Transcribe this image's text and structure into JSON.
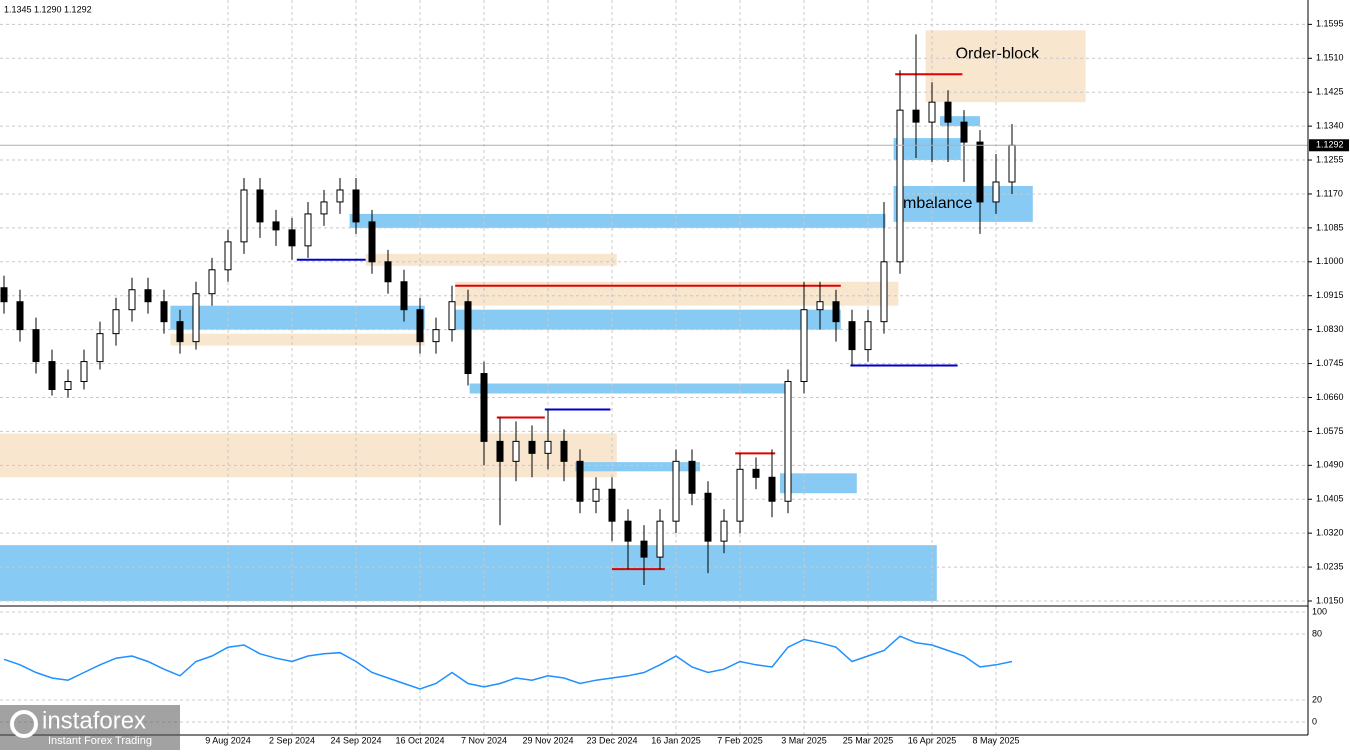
{
  "chart_data": {
    "type": "candlestick",
    "header": "1.1345 1.1290 1.1292",
    "categories": [
      null,
      null,
      null,
      null,
      null,
      null,
      null,
      null,
      null,
      null,
      null,
      null,
      null,
      null,
      "9 Aug 2024",
      null,
      null,
      null,
      "2 Sep 2024",
      null,
      null,
      null,
      "24 Sep 2024",
      null,
      null,
      null,
      "16 Oct 2024",
      null,
      null,
      null,
      "7 Nov 2024",
      null,
      null,
      null,
      "29 Nov 2024",
      null,
      null,
      null,
      "23 Dec 2024",
      null,
      null,
      null,
      "16 Jan 2025",
      null,
      null,
      null,
      "7 Feb 2025",
      null,
      null,
      null,
      "3 Mar 2025",
      null,
      null,
      null,
      "25 Mar 2025",
      null,
      null,
      null,
      "16 Apr 2025",
      null,
      null,
      null,
      "8 May 2025",
      null
    ],
    "open": [
      1.0935,
      1.09,
      1.083,
      1.075,
      1.068,
      1.07,
      1.075,
      1.082,
      1.088,
      1.093,
      1.09,
      1.085,
      1.08,
      1.092,
      1.098,
      1.105,
      1.118,
      1.11,
      1.108,
      1.104,
      1.112,
      1.115,
      1.118,
      1.11,
      1.1,
      1.095,
      1.088,
      1.08,
      1.083,
      1.09,
      1.072,
      1.055,
      1.05,
      1.055,
      1.052,
      1.055,
      1.05,
      1.04,
      1.043,
      1.035,
      1.03,
      1.026,
      1.035,
      1.05,
      1.042,
      1.03,
      1.035,
      1.048,
      1.046,
      1.04,
      1.07,
      1.088,
      1.09,
      1.085,
      1.078,
      1.085,
      1.1,
      1.138,
      1.135,
      1.14,
      1.135,
      1.13,
      1.115,
      1.12
    ],
    "high": [
      1.0965,
      1.093,
      1.086,
      1.078,
      1.073,
      1.078,
      1.085,
      1.091,
      1.096,
      1.096,
      1.093,
      1.088,
      1.095,
      1.101,
      1.108,
      1.121,
      1.121,
      1.113,
      1.111,
      1.115,
      1.118,
      1.121,
      1.121,
      1.113,
      1.103,
      1.098,
      1.091,
      1.086,
      1.094,
      1.093,
      1.075,
      1.061,
      1.06,
      1.059,
      1.063,
      1.058,
      1.053,
      1.046,
      1.046,
      1.038,
      1.034,
      1.038,
      1.053,
      1.053,
      1.045,
      1.038,
      1.052,
      1.051,
      1.053,
      1.073,
      1.095,
      1.095,
      1.093,
      1.088,
      1.088,
      1.115,
      1.148,
      1.157,
      1.145,
      1.143,
      1.138,
      1.133,
      1.127,
      1.1345
    ],
    "low": [
      1.087,
      1.08,
      1.072,
      1.0665,
      1.066,
      1.068,
      1.073,
      1.079,
      1.085,
      1.087,
      1.082,
      1.077,
      1.078,
      1.089,
      1.095,
      1.102,
      1.106,
      1.104,
      1.1005,
      1.101,
      1.109,
      1.112,
      1.107,
      1.097,
      1.092,
      1.085,
      1.077,
      1.077,
      1.08,
      1.069,
      1.049,
      1.034,
      1.045,
      1.046,
      1.048,
      1.045,
      1.037,
      1.037,
      1.03,
      1.023,
      1.019,
      1.023,
      1.032,
      1.039,
      1.022,
      1.027,
      1.032,
      1.043,
      1.036,
      1.037,
      1.067,
      1.083,
      1.08,
      1.074,
      1.075,
      1.082,
      1.097,
      1.126,
      1.125,
      1.125,
      1.12,
      1.107,
      1.112,
      1.117
    ],
    "close": [
      1.09,
      1.083,
      1.075,
      1.068,
      1.07,
      1.075,
      1.082,
      1.088,
      1.093,
      1.09,
      1.085,
      1.08,
      1.092,
      1.098,
      1.105,
      1.118,
      1.11,
      1.108,
      1.104,
      1.112,
      1.115,
      1.118,
      1.11,
      1.1,
      1.095,
      1.088,
      1.08,
      1.083,
      1.09,
      1.072,
      1.055,
      1.05,
      1.055,
      1.052,
      1.055,
      1.05,
      1.04,
      1.043,
      1.035,
      1.03,
      1.026,
      1.035,
      1.05,
      1.042,
      1.03,
      1.035,
      1.048,
      1.046,
      1.04,
      1.07,
      1.088,
      1.09,
      1.085,
      1.078,
      1.085,
      1.1,
      1.138,
      1.135,
      1.14,
      1.135,
      1.13,
      1.115,
      1.12,
      1.1292
    ],
    "last_price": 1.1292,
    "ylim": [
      1.014,
      1.1636
    ],
    "yticks": [
      {
        "value": 1.015,
        "label": "1.0150"
      },
      {
        "value": 1.0235,
        "label": "1.0235"
      },
      {
        "value": 1.032,
        "label": "1.0320"
      },
      {
        "value": 1.0405,
        "label": "1.0405"
      },
      {
        "value": 1.049,
        "label": "1.0490"
      },
      {
        "value": 1.0575,
        "label": "1.0575"
      },
      {
        "value": 1.066,
        "label": "1.0660"
      },
      {
        "value": 1.0745,
        "label": "1.0745"
      },
      {
        "value": 1.083,
        "label": "1.0830"
      },
      {
        "value": 1.0915,
        "label": "1.0915"
      },
      {
        "value": 1.1,
        "label": "1.1000"
      },
      {
        "value": 1.1085,
        "label": "1.1085"
      },
      {
        "value": 1.117,
        "label": "1.1170"
      },
      {
        "value": 1.1255,
        "label": "1.1255"
      },
      {
        "value": 1.134,
        "label": "1.1340"
      },
      {
        "value": 1.1425,
        "label": "1.1425"
      },
      {
        "value": 1.151,
        "label": "1.1510"
      },
      {
        "value": 1.1595,
        "label": "1.1595"
      }
    ],
    "grid": true,
    "zones": [
      {
        "from": -0.5,
        "to": 58.3,
        "low": 1.015,
        "high": 1.029,
        "color": "#87cbf5"
      },
      {
        "from": -0.5,
        "to": 38.3,
        "low": 1.046,
        "high": 1.057,
        "color": "#f8e6cf"
      },
      {
        "from": 48.5,
        "to": 53.3,
        "low": 1.042,
        "high": 1.047,
        "color": "#87cbf5"
      },
      {
        "from": 35.7,
        "to": 43.5,
        "low": 1.0475,
        "high": 1.0498,
        "color": "#87cbf5"
      },
      {
        "from": 29.1,
        "to": 49.1,
        "low": 1.067,
        "high": 1.0695,
        "color": "#87cbf5"
      },
      {
        "from": 10.4,
        "to": 26.3,
        "low": 1.079,
        "high": 1.082,
        "color": "#f8e6cf"
      },
      {
        "from": 10.4,
        "to": 26.3,
        "low": 1.083,
        "high": 1.089,
        "color": "#87cbf5"
      },
      {
        "from": 28.2,
        "to": 55.9,
        "low": 1.089,
        "high": 1.095,
        "color": "#f8e6cf"
      },
      {
        "from": 28.2,
        "to": 52.3,
        "low": 1.083,
        "high": 1.088,
        "color": "#87cbf5"
      },
      {
        "from": 22.6,
        "to": 38.3,
        "low": 1.099,
        "high": 1.102,
        "color": "#f8e6cf"
      },
      {
        "from": 21.6,
        "to": 55.1,
        "low": 1.1085,
        "high": 1.112,
        "color": "#87cbf5"
      },
      {
        "from": 55.6,
        "to": 64.3,
        "low": 1.11,
        "high": 1.119,
        "label": "Imbalance",
        "color": "#87cbf5"
      },
      {
        "from": 55.6,
        "to": 59.8,
        "low": 1.1255,
        "high": 1.131,
        "color": "#87cbf5"
      },
      {
        "from": 58.5,
        "to": 61.0,
        "low": 1.134,
        "high": 1.1365,
        "color": "#87cbf5"
      },
      {
        "from": 57.6,
        "to": 67.6,
        "low": 1.14,
        "high": 1.158,
        "label": "Order-block",
        "color": "#f8e6cf"
      }
    ],
    "levels": [
      {
        "from": 28.2,
        "to": 52.3,
        "price": 1.094,
        "color": "#e00000"
      },
      {
        "from": 55.7,
        "to": 59.9,
        "price": 1.147,
        "color": "#e00000"
      },
      {
        "from": 52.9,
        "to": 59.6,
        "price": 1.074,
        "color": "#0000c8"
      },
      {
        "from": 30.8,
        "to": 33.8,
        "price": 1.061,
        "color": "#e00000"
      },
      {
        "from": 33.8,
        "to": 37.9,
        "price": 1.063,
        "color": "#0000c8"
      },
      {
        "from": 45.7,
        "to": 48.2,
        "price": 1.052,
        "color": "#e00000"
      },
      {
        "from": 38.0,
        "to": 41.3,
        "price": 1.023,
        "color": "#e00000"
      },
      {
        "from": 18.3,
        "to": 22.6,
        "price": 1.1005,
        "color": "#0000c8"
      }
    ],
    "indicator": {
      "color": "#1e90ff",
      "values": [
        57,
        52,
        45,
        40,
        38,
        45,
        52,
        58,
        60,
        55,
        48,
        42,
        55,
        60,
        68,
        70,
        62,
        58,
        55,
        60,
        62,
        63,
        55,
        45,
        40,
        35,
        30,
        35,
        45,
        35,
        32,
        35,
        40,
        38,
        42,
        40,
        35,
        38,
        40,
        42,
        45,
        52,
        60,
        50,
        45,
        48,
        55,
        52,
        50,
        68,
        75,
        72,
        68,
        55,
        60,
        65,
        78,
        72,
        70,
        65,
        60,
        50,
        52,
        55
      ],
      "ylim": [
        0,
        100
      ],
      "yticks": [
        0,
        20,
        80,
        100
      ]
    },
    "watermark": {
      "brand": "instaforex",
      "tagline": "Instant Forex Trading"
    }
  }
}
